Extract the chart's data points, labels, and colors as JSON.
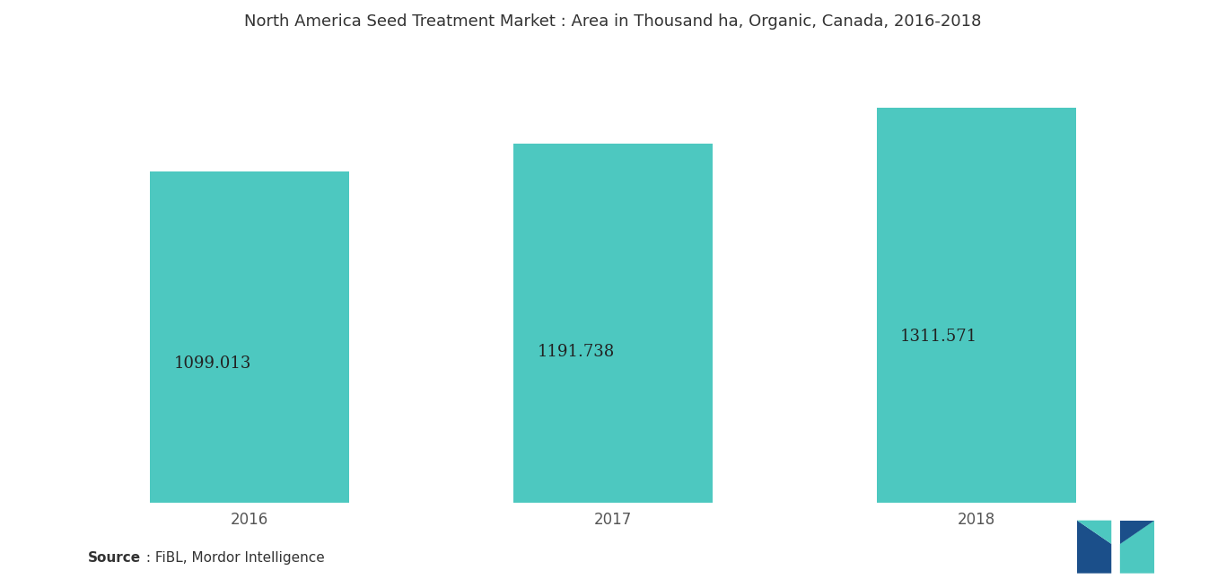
{
  "title": "North America Seed Treatment Market : Area in Thousand ha, Organic, Canada, 2016-2018",
  "categories": [
    "2016",
    "2017",
    "2018"
  ],
  "values": [
    1099.013,
    1191.738,
    1311.571
  ],
  "value_labels": [
    "1099.013",
    "1191.738",
    "1311.571"
  ],
  "bar_color": "#4DC8C0",
  "label_color": "#222222",
  "background_color": "#ffffff",
  "source_bold": "Source",
  "source_rest": " : FiBL, Mordor Intelligence",
  "bar_width": 0.55,
  "ylim": [
    0,
    1500
  ],
  "title_fontsize": 13,
  "label_fontsize": 13,
  "tick_fontsize": 12
}
